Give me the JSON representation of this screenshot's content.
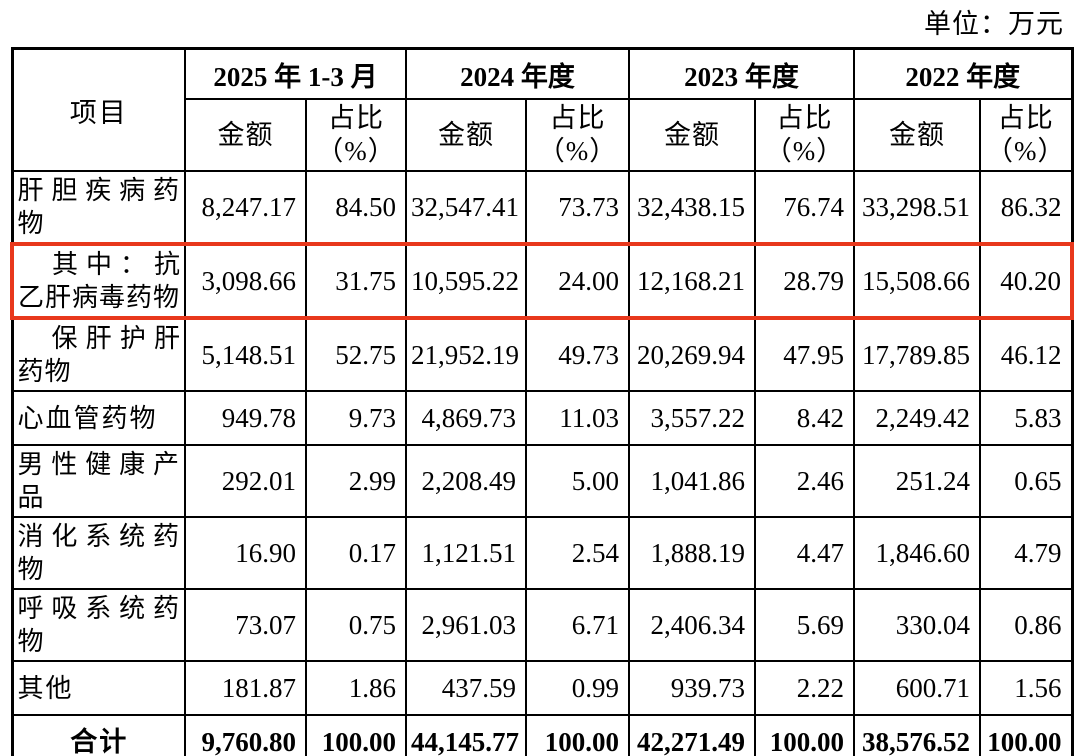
{
  "unit_note": "单位：万元",
  "colors": {
    "highlight_border": "#e8381c",
    "table_border": "#000000",
    "background": "#ffffff"
  },
  "table": {
    "item_header": "项目",
    "amount_header": "金额",
    "share_header": "占比（%）",
    "periods": [
      {
        "label": "2025 年 1-3 月"
      },
      {
        "label": "2024 年度"
      },
      {
        "label": "2023 年度"
      },
      {
        "label": "2022 年度"
      }
    ],
    "rows": [
      {
        "item": "肝胆疾病药物",
        "indent": false,
        "highlight": false,
        "total": false,
        "values": [
          "8,247.17",
          "84.50",
          "32,547.41",
          "73.73",
          "32,438.15",
          "76.74",
          "33,298.51",
          "86.32"
        ]
      },
      {
        "item": "其中：抗乙肝病毒药物",
        "indent": true,
        "highlight": true,
        "total": false,
        "values": [
          "3,098.66",
          "31.75",
          "10,595.22",
          "24.00",
          "12,168.21",
          "28.79",
          "15,508.66",
          "40.20"
        ]
      },
      {
        "item": "保肝护肝药物",
        "indent": true,
        "highlight": false,
        "total": false,
        "values": [
          "5,148.51",
          "52.75",
          "21,952.19",
          "49.73",
          "20,269.94",
          "47.95",
          "17,789.85",
          "46.12"
        ]
      },
      {
        "item": "心血管药物",
        "indent": false,
        "highlight": false,
        "total": false,
        "values": [
          "949.78",
          "9.73",
          "4,869.73",
          "11.03",
          "3,557.22",
          "8.42",
          "2,249.42",
          "5.83"
        ]
      },
      {
        "item": "男性健康产品",
        "indent": false,
        "highlight": false,
        "total": false,
        "values": [
          "292.01",
          "2.99",
          "2,208.49",
          "5.00",
          "1,041.86",
          "2.46",
          "251.24",
          "0.65"
        ]
      },
      {
        "item": "消化系统药物",
        "indent": false,
        "highlight": false,
        "total": false,
        "values": [
          "16.90",
          "0.17",
          "1,121.51",
          "2.54",
          "1,888.19",
          "4.47",
          "1,846.60",
          "4.79"
        ]
      },
      {
        "item": "呼吸系统药物",
        "indent": false,
        "highlight": false,
        "total": false,
        "values": [
          "73.07",
          "0.75",
          "2,961.03",
          "6.71",
          "2,406.34",
          "5.69",
          "330.04",
          "0.86"
        ]
      },
      {
        "item": "其他",
        "indent": false,
        "highlight": false,
        "total": false,
        "values": [
          "181.87",
          "1.86",
          "437.59",
          "0.99",
          "939.73",
          "2.22",
          "600.71",
          "1.56"
        ]
      },
      {
        "item": "合计",
        "indent": false,
        "highlight": false,
        "total": true,
        "values": [
          "9,760.80",
          "100.00",
          "44,145.77",
          "100.00",
          "42,271.49",
          "100.00",
          "38,576.52",
          "100.00"
        ]
      }
    ]
  }
}
